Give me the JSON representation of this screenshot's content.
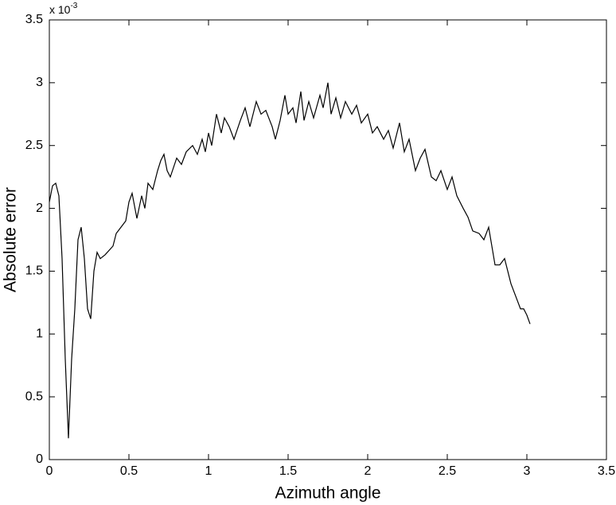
{
  "chart_data": {
    "type": "line",
    "xlabel": "Azimuth angle",
    "ylabel": "Absolute error",
    "y_multiplier": {
      "base": "x 10",
      "exponent": "-3"
    },
    "xlim": [
      0,
      3.5
    ],
    "xticks": [
      0,
      0.5,
      1,
      1.5,
      2,
      2.5,
      3,
      3.5
    ],
    "ylim": [
      0,
      3.5
    ],
    "yticks": [
      0,
      0.5,
      1,
      1.5,
      2,
      2.5,
      3,
      3.5
    ],
    "grid": false,
    "series": [
      {
        "color": "#000000",
        "x": [
          0,
          0.02,
          0.04,
          0.06,
          0.08,
          0.1,
          0.12,
          0.14,
          0.16,
          0.18,
          0.2,
          0.22,
          0.24,
          0.26,
          0.28,
          0.3,
          0.32,
          0.35,
          0.4,
          0.42,
          0.45,
          0.48,
          0.5,
          0.52,
          0.55,
          0.58,
          0.6,
          0.62,
          0.65,
          0.68,
          0.7,
          0.72,
          0.74,
          0.76,
          0.8,
          0.83,
          0.86,
          0.9,
          0.93,
          0.96,
          0.98,
          1.0,
          1.02,
          1.05,
          1.08,
          1.1,
          1.13,
          1.16,
          1.2,
          1.23,
          1.26,
          1.3,
          1.33,
          1.36,
          1.4,
          1.42,
          1.45,
          1.48,
          1.5,
          1.53,
          1.55,
          1.58,
          1.6,
          1.63,
          1.66,
          1.7,
          1.72,
          1.75,
          1.77,
          1.8,
          1.83,
          1.86,
          1.9,
          1.93,
          1.96,
          2.0,
          2.03,
          2.06,
          2.1,
          2.13,
          2.16,
          2.2,
          2.23,
          2.26,
          2.3,
          2.33,
          2.36,
          2.4,
          2.43,
          2.46,
          2.5,
          2.53,
          2.56,
          2.6,
          2.63,
          2.66,
          2.7,
          2.73,
          2.76,
          2.8,
          2.83,
          2.86,
          2.9,
          2.93,
          2.96,
          2.98,
          3.0,
          3.02
        ],
        "values": [
          2.05,
          2.18,
          2.2,
          2.1,
          1.6,
          0.8,
          0.17,
          0.8,
          1.2,
          1.75,
          1.85,
          1.6,
          1.2,
          1.12,
          1.5,
          1.65,
          1.6,
          1.63,
          1.7,
          1.8,
          1.85,
          1.9,
          2.05,
          2.12,
          1.92,
          2.1,
          2.0,
          2.2,
          2.15,
          2.3,
          2.38,
          2.43,
          2.3,
          2.25,
          2.4,
          2.35,
          2.45,
          2.5,
          2.43,
          2.55,
          2.45,
          2.6,
          2.5,
          2.75,
          2.6,
          2.72,
          2.65,
          2.55,
          2.7,
          2.8,
          2.65,
          2.85,
          2.75,
          2.78,
          2.65,
          2.55,
          2.7,
          2.9,
          2.75,
          2.8,
          2.68,
          2.93,
          2.7,
          2.85,
          2.72,
          2.9,
          2.8,
          3.0,
          2.75,
          2.88,
          2.72,
          2.85,
          2.75,
          2.82,
          2.68,
          2.75,
          2.6,
          2.65,
          2.55,
          2.62,
          2.48,
          2.68,
          2.45,
          2.55,
          2.3,
          2.4,
          2.47,
          2.25,
          2.22,
          2.3,
          2.15,
          2.25,
          2.1,
          2.0,
          1.93,
          1.82,
          1.8,
          1.75,
          1.85,
          1.55,
          1.55,
          1.6,
          1.4,
          1.3,
          1.2,
          1.2,
          1.15,
          1.08
        ]
      }
    ]
  }
}
